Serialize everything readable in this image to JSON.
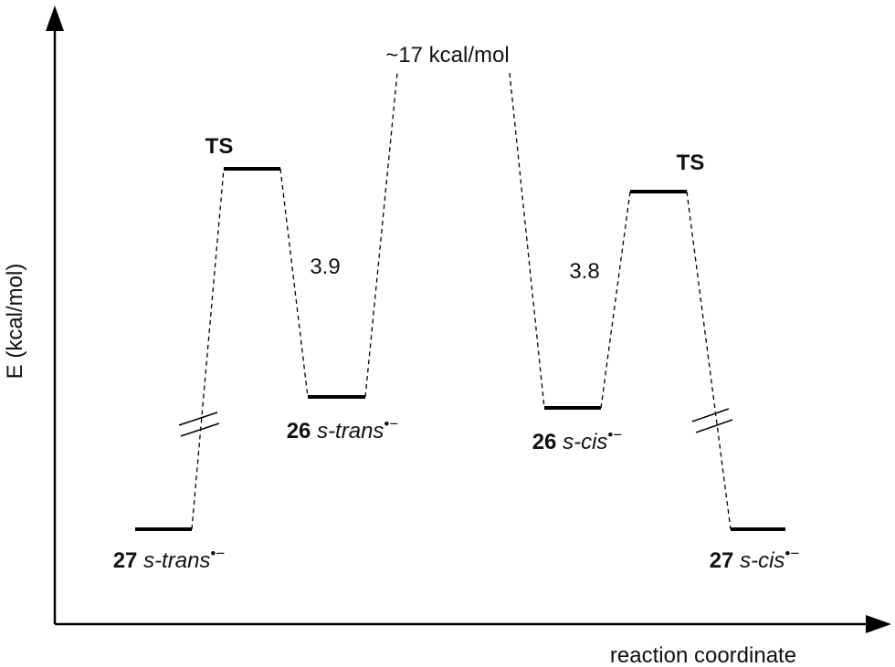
{
  "axes": {
    "y_label": "E (kcal/mol)",
    "x_label": "reaction coordinate"
  },
  "levels": [
    {
      "compound": "27",
      "conformer": "s-trans",
      "charge": "•−"
    },
    {
      "compound": "26",
      "conformer": "s-trans",
      "charge": "•−"
    },
    {
      "compound": "26",
      "conformer": "s-cis",
      "charge": "•−"
    },
    {
      "compound": "27",
      "conformer": "s-cis",
      "charge": "•−"
    }
  ],
  "transition_states": [
    "TS",
    "TS"
  ],
  "barriers": [
    "3.9",
    "~17 kcal/mol",
    "3.8"
  ]
}
